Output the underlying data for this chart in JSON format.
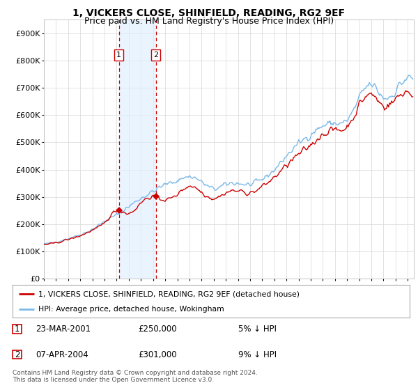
{
  "title": "1, VICKERS CLOSE, SHINFIELD, READING, RG2 9EF",
  "subtitle": "Price paid vs. HM Land Registry's House Price Index (HPI)",
  "legend_line1": "1, VICKERS CLOSE, SHINFIELD, READING, RG2 9EF (detached house)",
  "legend_line2": "HPI: Average price, detached house, Wokingham",
  "footer": "Contains HM Land Registry data © Crown copyright and database right 2024.\nThis data is licensed under the Open Government Licence v3.0.",
  "transaction1_date": "23-MAR-2001",
  "transaction1_price": "£250,000",
  "transaction1_hpi": "5% ↓ HPI",
  "transaction2_date": "07-APR-2004",
  "transaction2_price": "£301,000",
  "transaction2_hpi": "9% ↓ HPI",
  "hpi_color": "#7ab8e8",
  "price_color": "#cc0000",
  "transaction_vline_color": "#cc0000",
  "transaction_fill_color": "#ddeeff",
  "bg_color": "#ffffff",
  "grid_color": "#dddddd",
  "ylim": [
    0,
    950000
  ],
  "yticks": [
    0,
    100000,
    200000,
    300000,
    400000,
    500000,
    600000,
    700000,
    800000,
    900000
  ],
  "ytick_labels": [
    "£0",
    "£100K",
    "£200K",
    "£300K",
    "£400K",
    "£500K",
    "£600K",
    "£700K",
    "£800K",
    "£900K"
  ],
  "transaction1_x": 2001.22,
  "transaction2_x": 2004.27,
  "transaction1_y": 250000,
  "transaction2_y": 301000,
  "xmin": 1995.0,
  "xmax": 2025.5
}
